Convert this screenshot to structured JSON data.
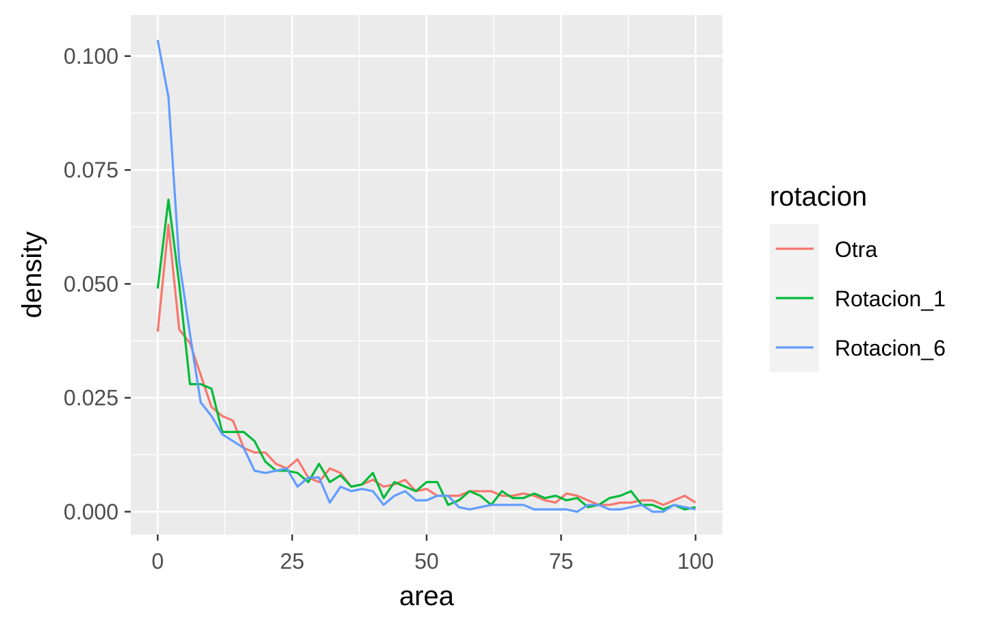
{
  "chart_data": {
    "type": "line",
    "xlabel": "area",
    "ylabel": "density",
    "xlim": [
      -5,
      105
    ],
    "ylim": [
      -0.005,
      0.109
    ],
    "x_ticks": [
      0,
      25,
      50,
      75,
      100
    ],
    "x_tick_labels": [
      "0",
      "25",
      "50",
      "75",
      "100"
    ],
    "y_ticks": [
      0.0,
      0.025,
      0.05,
      0.075,
      0.1
    ],
    "y_tick_labels": [
      "0.000",
      "0.025",
      "0.050",
      "0.075",
      "0.100"
    ],
    "grid": true,
    "background": "#ebebeb",
    "legend": {
      "title": "rotacion",
      "position": "right"
    },
    "x": [
      0,
      2,
      4,
      6,
      8,
      10,
      12,
      14,
      16,
      18,
      20,
      22,
      24,
      26,
      28,
      30,
      32,
      34,
      36,
      38,
      40,
      42,
      44,
      46,
      48,
      50,
      52,
      54,
      56,
      58,
      60,
      62,
      64,
      66,
      68,
      70,
      72,
      74,
      76,
      78,
      80,
      82,
      84,
      86,
      88,
      90,
      92,
      94,
      96,
      98,
      100
    ],
    "series": [
      {
        "name": "Otra",
        "color": "#F8766D",
        "values": [
          0.0395,
          0.063,
          0.04,
          0.037,
          0.03,
          0.023,
          0.021,
          0.02,
          0.014,
          0.013,
          0.013,
          0.0105,
          0.0095,
          0.0115,
          0.0075,
          0.0065,
          0.0095,
          0.0085,
          0.0055,
          0.006,
          0.007,
          0.0055,
          0.006,
          0.007,
          0.0045,
          0.005,
          0.0035,
          0.0035,
          0.0035,
          0.0045,
          0.0045,
          0.0045,
          0.0035,
          0.0035,
          0.004,
          0.0035,
          0.0025,
          0.002,
          0.004,
          0.0035,
          0.0025,
          0.0015,
          0.0015,
          0.002,
          0.002,
          0.0025,
          0.0025,
          0.0015,
          0.0025,
          0.0035,
          0.002
        ]
      },
      {
        "name": "Rotacion_1",
        "color": "#00BA38",
        "values": [
          0.049,
          0.0685,
          0.05,
          0.028,
          0.028,
          0.027,
          0.0175,
          0.0175,
          0.0175,
          0.0155,
          0.011,
          0.009,
          0.009,
          0.0085,
          0.0065,
          0.0105,
          0.0065,
          0.008,
          0.0055,
          0.006,
          0.0085,
          0.003,
          0.0065,
          0.0055,
          0.0045,
          0.0065,
          0.0065,
          0.0015,
          0.0025,
          0.0045,
          0.0035,
          0.0015,
          0.0045,
          0.003,
          0.003,
          0.004,
          0.003,
          0.0035,
          0.0025,
          0.003,
          0.001,
          0.0015,
          0.003,
          0.0035,
          0.0045,
          0.0015,
          0.0015,
          0.0005,
          0.0015,
          0.0005,
          0.001
        ]
      },
      {
        "name": "Rotacion_6",
        "color": "#619CFF",
        "values": [
          0.1035,
          0.091,
          0.055,
          0.039,
          0.024,
          0.021,
          0.017,
          0.0155,
          0.014,
          0.009,
          0.0085,
          0.009,
          0.0095,
          0.0055,
          0.0075,
          0.0075,
          0.002,
          0.0055,
          0.0045,
          0.005,
          0.0045,
          0.0015,
          0.0035,
          0.0045,
          0.0025,
          0.0025,
          0.0035,
          0.0035,
          0.001,
          0.0005,
          0.001,
          0.0015,
          0.0015,
          0.0015,
          0.0015,
          0.0005,
          0.0005,
          0.0005,
          0.0005,
          0.0,
          0.0015,
          0.0015,
          0.0005,
          0.0005,
          0.001,
          0.0015,
          0.0,
          0.0,
          0.0015,
          0.001,
          0.0005
        ]
      }
    ]
  }
}
